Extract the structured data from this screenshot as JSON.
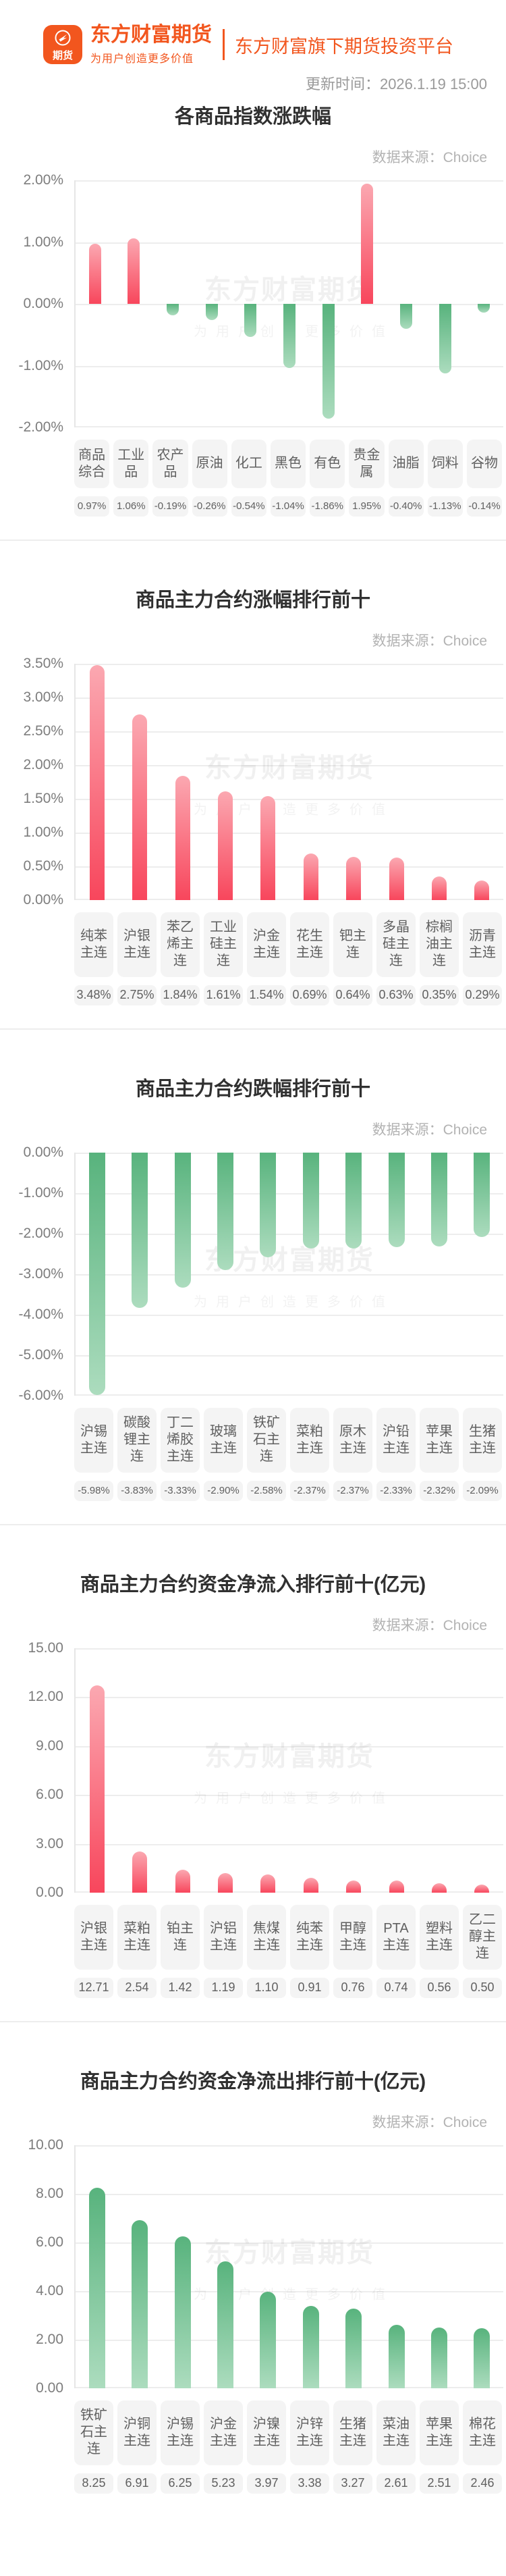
{
  "header": {
    "logo_badge": "期货",
    "brand_name": "东方财富期货",
    "brand_tagline": "为用户创造更多价值",
    "platform_text": "东方财富旗下期货投资平台",
    "update_time": "更新时间：2026.1.19 15:00"
  },
  "source_label": "数据来源：Choice",
  "watermark": {
    "line1": "东方财富期货",
    "line2": "为用户创造更多价值"
  },
  "colors": {
    "brand_orange": "#F2561E",
    "bar_red_light": "#FBA8B1",
    "bar_red_dark": "#F8465C",
    "bar_green_dark": "#58B37D",
    "bar_green_light": "#ACDCBE",
    "gridline": "#EDEDED",
    "pill_bg": "#F4F4F4"
  },
  "chart_data": [
    {
      "type": "bar",
      "title": "各商品指数涨跌幅",
      "bar_color": "auto",
      "grid": true,
      "categories": [
        "商品综合",
        "工业品",
        "农产品",
        "原油",
        "化工",
        "黑色",
        "有色",
        "贵金属",
        "油脂",
        "饲料",
        "谷物"
      ],
      "values": [
        0.97,
        1.06,
        -0.19,
        -0.26,
        -0.54,
        -1.04,
        -1.86,
        1.95,
        -0.4,
        -1.13,
        -0.14
      ],
      "value_labels": [
        "0.97%",
        "1.06%",
        "-0.19%",
        "-0.26%",
        "-0.54%",
        "-1.04%",
        "-1.86%",
        "1.95%",
        "-0.40%",
        "-1.13%",
        "-0.14%"
      ],
      "ylim": [
        -2,
        2
      ],
      "ytick_labels": [
        "2.00%",
        "1.00%",
        "0.00%",
        "-1.00%",
        "-2.00%"
      ]
    },
    {
      "type": "bar",
      "title": "商品主力合约涨幅排行前十",
      "bar_color": "red",
      "grid": true,
      "categories": [
        "纯苯主连",
        "沪银主连",
        "苯乙烯主连",
        "工业硅主连",
        "沪金主连",
        "花生主连",
        "钯主连",
        "多晶硅主连",
        "棕榈油主连",
        "沥青主连"
      ],
      "values": [
        3.48,
        2.75,
        1.84,
        1.61,
        1.54,
        0.69,
        0.64,
        0.63,
        0.35,
        0.29
      ],
      "value_labels": [
        "3.48%",
        "2.75%",
        "1.84%",
        "1.61%",
        "1.54%",
        "0.69%",
        "0.64%",
        "0.63%",
        "0.35%",
        "0.29%"
      ],
      "ylim": [
        0,
        3.5
      ],
      "ytick_labels": [
        "3.50%",
        "3.00%",
        "2.50%",
        "2.00%",
        "1.50%",
        "1.00%",
        "0.50%",
        "0.00%"
      ]
    },
    {
      "type": "bar",
      "title": "商品主力合约跌幅排行前十",
      "bar_color": "green",
      "grid": true,
      "categories": [
        "沪锡主连",
        "碳酸锂主连",
        "丁二烯胶主连",
        "玻璃主连",
        "铁矿石主连",
        "菜粕主连",
        "原木主连",
        "沪铅主连",
        "苹果主连",
        "生猪主连"
      ],
      "values": [
        -5.98,
        -3.83,
        -3.33,
        -2.9,
        -2.58,
        -2.37,
        -2.37,
        -2.33,
        -2.32,
        -2.09
      ],
      "value_labels": [
        "-5.98%",
        "-3.83%",
        "-3.33%",
        "-2.90%",
        "-2.58%",
        "-2.37%",
        "-2.37%",
        "-2.33%",
        "-2.32%",
        "-2.09%"
      ],
      "ylim": [
        -6,
        0
      ],
      "ytick_labels": [
        "0.00%",
        "-1.00%",
        "-2.00%",
        "-3.00%",
        "-4.00%",
        "-5.00%",
        "-6.00%"
      ]
    },
    {
      "type": "bar",
      "title": "商品主力合约资金净流入排行前十(亿元)",
      "bar_color": "red",
      "grid": true,
      "categories": [
        "沪银主连",
        "菜粕主连",
        "铂主连",
        "沪铝主连",
        "焦煤主连",
        "纯苯主连",
        "甲醇主连",
        "PTA主连",
        "塑料主连",
        "乙二醇主连"
      ],
      "values": [
        12.71,
        2.54,
        1.42,
        1.19,
        1.1,
        0.91,
        0.76,
        0.74,
        0.56,
        0.5
      ],
      "value_labels": [
        "12.71",
        "2.54",
        "1.42",
        "1.19",
        "1.10",
        "0.91",
        "0.76",
        "0.74",
        "0.56",
        "0.50"
      ],
      "ylim": [
        0,
        15
      ],
      "ytick_labels": [
        "15.00",
        "12.00",
        "9.00",
        "6.00",
        "3.00",
        "0.00"
      ]
    },
    {
      "type": "bar",
      "title": "商品主力合约资金净流出排行前十(亿元)",
      "bar_color": "green",
      "grid": true,
      "categories": [
        "铁矿石主连",
        "沪铜主连",
        "沪锡主连",
        "沪金主连",
        "沪镍主连",
        "沪锌主连",
        "生猪主连",
        "菜油主连",
        "苹果主连",
        "棉花主连"
      ],
      "values": [
        8.25,
        6.91,
        6.25,
        5.23,
        3.97,
        3.38,
        3.27,
        2.61,
        2.51,
        2.46
      ],
      "value_labels": [
        "8.25",
        "6.91",
        "6.25",
        "5.23",
        "3.97",
        "3.38",
        "3.27",
        "2.61",
        "2.51",
        "2.46"
      ],
      "ylim": [
        0,
        10
      ],
      "ytick_labels": [
        "10.00",
        "8.00",
        "6.00",
        "4.00",
        "2.00",
        "0.00"
      ]
    }
  ]
}
